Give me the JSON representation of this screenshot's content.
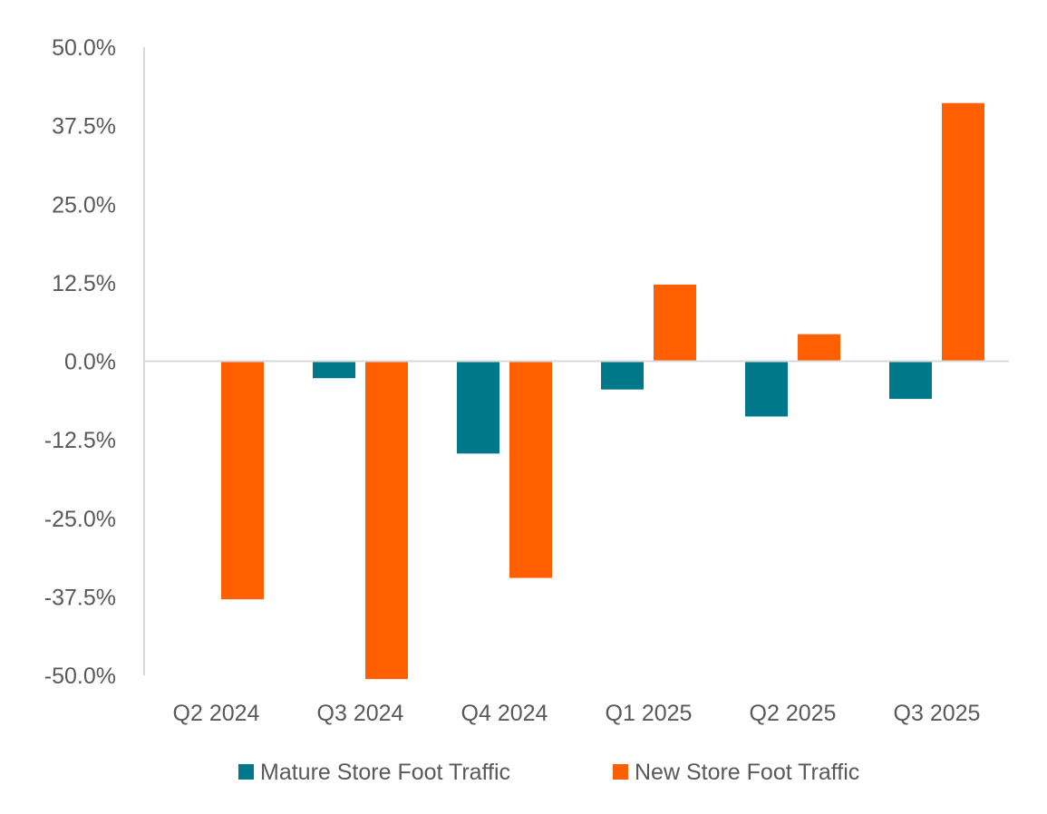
{
  "chart_data": {
    "type": "bar",
    "title": "",
    "xlabel": "",
    "ylabel": "",
    "categories": [
      "Q2 2024",
      "Q3 2024",
      "Q4 2024",
      "Q1 2025",
      "Q2 2025",
      "Q3 2025"
    ],
    "series": [
      {
        "name": "Mature Store Foot Traffic",
        "color": "#00788A",
        "values": [
          0.0,
          -2.7,
          -14.7,
          -4.5,
          -8.8,
          -6.0
        ]
      },
      {
        "name": "New Store Foot Traffic",
        "color": "#FF5F00",
        "values": [
          -37.9,
          -50.6,
          -34.5,
          12.2,
          4.3,
          41.1
        ]
      }
    ],
    "ylim": [
      -50,
      50
    ],
    "yticks": [
      50,
      37.5,
      25,
      12.5,
      0,
      -12.5,
      -25,
      -37.5,
      -50
    ],
    "ytick_labels": [
      "50.0%",
      "37.5%",
      "25.0%",
      "12.5%",
      "0.0%",
      "-12.5%",
      "-25.0%",
      "-37.5%",
      "-50.0%"
    ],
    "grid": false,
    "legend_position": "bottom"
  }
}
